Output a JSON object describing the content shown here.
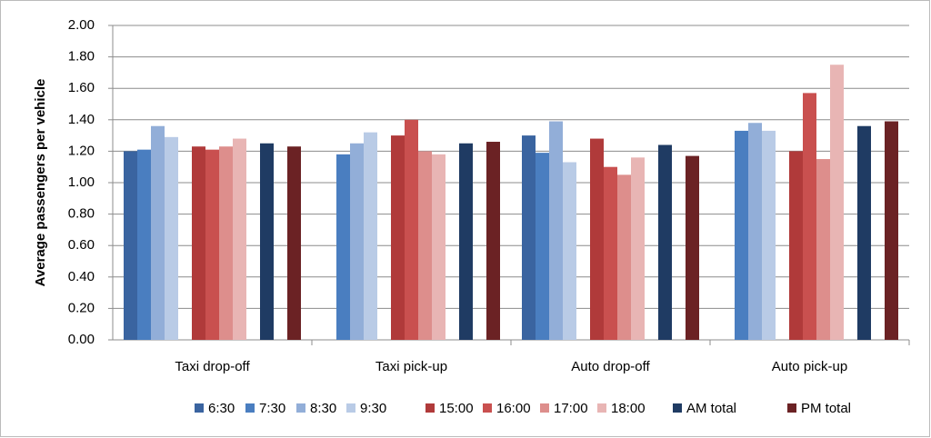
{
  "chart_data": {
    "type": "bar",
    "y_label": "Average passengers per vehicle",
    "categories": [
      "Taxi drop-off",
      "Taxi pick-up",
      "Auto drop-off",
      "Auto pick-up"
    ],
    "series": [
      {
        "name": "6:30",
        "color": "#3a64a0",
        "values": [
          1.2,
          null,
          1.3,
          null
        ]
      },
      {
        "name": "7:30",
        "color": "#4a7ec0",
        "values": [
          1.21,
          1.18,
          1.19,
          1.33
        ]
      },
      {
        "name": "8:30",
        "color": "#92aed8",
        "values": [
          1.36,
          1.25,
          1.39,
          1.38
        ]
      },
      {
        "name": "9:30",
        "color": "#b9cbe6",
        "values": [
          1.29,
          1.32,
          1.13,
          1.33
        ]
      },
      {
        "name": "15:00",
        "color": "#b03a3a",
        "values": [
          1.23,
          1.3,
          1.28,
          1.2
        ]
      },
      {
        "name": "16:00",
        "color": "#c9504f",
        "values": [
          1.21,
          1.4,
          1.1,
          1.57
        ]
      },
      {
        "name": "17:00",
        "color": "#dd8e8c",
        "values": [
          1.23,
          1.2,
          1.05,
          1.15
        ]
      },
      {
        "name": "18:00",
        "color": "#e8b5b4",
        "values": [
          1.28,
          1.18,
          1.16,
          1.75
        ]
      },
      {
        "name": "AM total",
        "color": "#1f3b63",
        "values": [
          1.25,
          1.25,
          1.24,
          1.36
        ]
      },
      {
        "name": "PM total",
        "color": "#6b2224",
        "values": [
          1.23,
          1.26,
          1.17,
          1.39
        ]
      }
    ],
    "ylim": [
      0,
      2
    ],
    "yticks": [
      {
        "value": 0,
        "label": "0.00"
      },
      {
        "value": 0.2,
        "label": "0.20"
      },
      {
        "value": 0.4,
        "label": "0.40"
      },
      {
        "value": 0.6,
        "label": "0.60"
      },
      {
        "value": 0.8,
        "label": "0.80"
      },
      {
        "value": 1,
        "label": "1.00"
      },
      {
        "value": 1.2,
        "label": "1.20"
      },
      {
        "value": 1.4,
        "label": "1.40"
      },
      {
        "value": 1.6,
        "label": "1.60"
      },
      {
        "value": 1.8,
        "label": "1.80"
      },
      {
        "value": 2,
        "label": "2.00"
      }
    ],
    "grid": true
  }
}
